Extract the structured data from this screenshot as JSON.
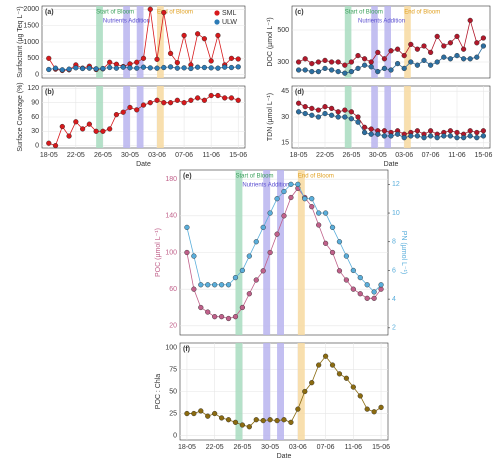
{
  "chart_data": [
    {
      "type": "line",
      "label": "(a)",
      "ylabel": "Surfactant (µg Teq L⁻¹)",
      "legend": "top-right",
      "x": [
        "18-05",
        "19-05",
        "20-05",
        "21-05",
        "22-05",
        "23-05",
        "24-05",
        "25-05",
        "26-05",
        "27-05",
        "28-05",
        "29-05",
        "30-05",
        "31-05",
        "01-06",
        "02-06",
        "03-06",
        "04-06",
        "05-06",
        "06-06",
        "07-06",
        "08-06",
        "09-06",
        "10-06",
        "11-06",
        "12-06",
        "13-06",
        "14-06",
        "15-06"
      ],
      "xlim": [
        "17-05",
        "16-06"
      ],
      "ylim": [
        -100,
        2100
      ],
      "yticks": [
        0,
        500,
        1000,
        1500,
        2000
      ],
      "grid": true,
      "series": [
        {
          "name": "SML",
          "color": "#d7191c",
          "values": [
            500,
            170,
            130,
            150,
            300,
            200,
            260,
            160,
            180,
            380,
            320,
            250,
            330,
            380,
            500,
            2000,
            470,
            1900,
            650,
            370,
            1200,
            300,
            1250,
            1100,
            420,
            1200,
            300,
            500,
            480
          ]
        },
        {
          "name": "ULW",
          "color": "#2c7bb6",
          "values": [
            160,
            200,
            150,
            170,
            210,
            190,
            200,
            180,
            190,
            220,
            200,
            230,
            210,
            200,
            230,
            210,
            200,
            220,
            240,
            200,
            210,
            190,
            230,
            220,
            210,
            200,
            230,
            220,
            240
          ]
        }
      ],
      "bands": [
        {
          "x0": "25-05",
          "x1": "26-05",
          "color": "#a8dcc0"
        },
        {
          "x0": "29-05",
          "x1": "30-05",
          "color": "#b8b4ee"
        },
        {
          "x0": "31-05",
          "x1": "01-06",
          "color": "#b8b4ee"
        },
        {
          "x0": "03-06",
          "x1": "04-06",
          "color": "#f7d9a0"
        }
      ],
      "annotations": [
        {
          "label": "Start of Bloom",
          "x": "25-05",
          "color": "#3aa05a",
          "row": 0
        },
        {
          "label": "Nutrients Addition",
          "x": "26-05",
          "color": "#5b4fd0",
          "row": 1
        },
        {
          "label": "End of Bloom",
          "x": "03-06",
          "color": "#e0a020",
          "row": 0
        }
      ]
    },
    {
      "type": "line",
      "label": "(b)",
      "ylabel": "Surface Coverage (%)",
      "xlabel": "Date",
      "x": [
        "18-05",
        "19-05",
        "20-05",
        "21-05",
        "22-05",
        "23-05",
        "24-05",
        "25-05",
        "26-05",
        "27-05",
        "28-05",
        "29-05",
        "30-05",
        "31-05",
        "01-06",
        "02-06",
        "03-06",
        "04-06",
        "05-06",
        "06-06",
        "07-06",
        "08-06",
        "09-06",
        "10-06",
        "11-06",
        "12-06",
        "13-06",
        "14-06",
        "15-06"
      ],
      "xlim": [
        "17-05",
        "16-06"
      ],
      "xticks": [
        "18-05",
        "22-05",
        "26-05",
        "30-05",
        "03-06",
        "07-06",
        "11-06",
        "15-06"
      ],
      "ylim": [
        -5,
        125
      ],
      "yticks": [
        0,
        30,
        60,
        90,
        120
      ],
      "grid": true,
      "series": [
        {
          "color": "#d7191c",
          "values": [
            5,
            0,
            40,
            20,
            50,
            35,
            45,
            30,
            30,
            35,
            65,
            70,
            80,
            75,
            85,
            90,
            95,
            90,
            90,
            95,
            90,
            95,
            100,
            95,
            105,
            105,
            100,
            100,
            95
          ]
        }
      ],
      "bands": [
        {
          "x0": "25-05",
          "x1": "26-05",
          "color": "#a8dcc0"
        },
        {
          "x0": "29-05",
          "x1": "30-05",
          "color": "#b8b4ee"
        },
        {
          "x0": "31-05",
          "x1": "01-06",
          "color": "#b8b4ee"
        },
        {
          "x0": "03-06",
          "x1": "04-06",
          "color": "#f7d9a0"
        }
      ]
    },
    {
      "type": "line",
      "label": "(c)",
      "ylabel": "DOC (µmol L⁻¹)",
      "x": [
        "18-05",
        "19-05",
        "20-05",
        "21-05",
        "22-05",
        "23-05",
        "24-05",
        "25-05",
        "26-05",
        "27-05",
        "28-05",
        "29-05",
        "30-05",
        "31-05",
        "01-06",
        "02-06",
        "03-06",
        "04-06",
        "05-06",
        "06-06",
        "07-06",
        "08-06",
        "09-06",
        "10-06",
        "11-06",
        "12-06",
        "13-06",
        "14-06",
        "15-06"
      ],
      "xlim": [
        "17-05",
        "16-06"
      ],
      "ylim": [
        200,
        650
      ],
      "yticks": [
        300,
        500
      ],
      "grid": true,
      "series": [
        {
          "color": "#b2182b",
          "values": [
            300,
            320,
            290,
            300,
            310,
            300,
            300,
            280,
            300,
            340,
            320,
            300,
            360,
            320,
            370,
            380,
            340,
            410,
            380,
            400,
            360,
            460,
            400,
            420,
            460,
            380,
            560,
            420,
            450
          ]
        },
        {
          "color": "#2c6ea0",
          "values": [
            250,
            250,
            240,
            240,
            260,
            250,
            240,
            230,
            240,
            260,
            280,
            270,
            240,
            260,
            250,
            290,
            260,
            300,
            280,
            310,
            280,
            300,
            330,
            320,
            340,
            320,
            320,
            330,
            400
          ]
        }
      ],
      "bands": [
        {
          "x0": "25-05",
          "x1": "26-05",
          "color": "#a8dcc0"
        },
        {
          "x0": "29-05",
          "x1": "30-05",
          "color": "#b8b4ee"
        },
        {
          "x0": "31-05",
          "x1": "01-06",
          "color": "#b8b4ee"
        },
        {
          "x0": "03-06",
          "x1": "04-06",
          "color": "#f7d9a0"
        }
      ],
      "annotations": [
        {
          "label": "Start of Bloom",
          "x": "25-05",
          "color": "#3aa05a",
          "row": 0
        },
        {
          "label": "Nutrients Addition",
          "x": "27-05",
          "color": "#5b4fd0",
          "row": 1
        },
        {
          "label": "End of Bloom",
          "x": "03-06",
          "color": "#e0a020",
          "row": 0
        }
      ]
    },
    {
      "type": "line",
      "label": "(d)",
      "ylabel": "TDN (µmol L⁻¹)",
      "xlabel": "Date",
      "x": [
        "18-05",
        "19-05",
        "20-05",
        "21-05",
        "22-05",
        "23-05",
        "24-05",
        "25-05",
        "26-05",
        "27-05",
        "28-05",
        "29-05",
        "30-05",
        "31-05",
        "01-06",
        "02-06",
        "03-06",
        "04-06",
        "05-06",
        "06-06",
        "07-06",
        "08-06",
        "09-06",
        "10-06",
        "11-06",
        "12-06",
        "13-06",
        "14-06",
        "15-06"
      ],
      "xlim": [
        "17-05",
        "16-06"
      ],
      "xticks": [
        "18-05",
        "22-05",
        "26-05",
        "30-05",
        "03-06",
        "07-06",
        "11-06",
        "15-06"
      ],
      "ylim": [
        12,
        48
      ],
      "yticks": [
        15,
        30,
        45
      ],
      "grid": true,
      "series": [
        {
          "color": "#b2182b",
          "values": [
            38,
            36,
            35,
            34,
            36,
            35,
            33,
            34,
            33,
            30,
            24,
            23,
            22,
            22,
            21,
            22,
            20,
            21,
            22,
            20,
            22,
            20,
            21,
            22,
            21,
            20,
            22,
            21,
            22
          ]
        },
        {
          "color": "#2c6ea0",
          "values": [
            33,
            32,
            31,
            30,
            32,
            31,
            30,
            30,
            29,
            27,
            21,
            20,
            20,
            19,
            19,
            20,
            18,
            19,
            19,
            18,
            19,
            18,
            19,
            19,
            18,
            18,
            19,
            18,
            19
          ]
        }
      ],
      "bands": [
        {
          "x0": "25-05",
          "x1": "26-05",
          "color": "#a8dcc0"
        },
        {
          "x0": "29-05",
          "x1": "30-05",
          "color": "#b8b4ee"
        },
        {
          "x0": "31-05",
          "x1": "01-06",
          "color": "#b8b4ee"
        },
        {
          "x0": "03-06",
          "x1": "04-06",
          "color": "#f7d9a0"
        }
      ]
    },
    {
      "type": "line",
      "label": "(e)",
      "ylabel": "POC (µmol L⁻¹)",
      "y2label": "PN (µmol L⁻¹)",
      "x": [
        "18-05",
        "19-05",
        "20-05",
        "21-05",
        "22-05",
        "23-05",
        "24-05",
        "25-05",
        "26-05",
        "27-05",
        "28-05",
        "29-05",
        "30-05",
        "31-05",
        "01-06",
        "02-06",
        "03-06",
        "04-06",
        "05-06",
        "06-06",
        "07-06",
        "08-06",
        "09-06",
        "10-06",
        "11-06",
        "12-06",
        "13-06",
        "14-06",
        "15-06"
      ],
      "xlim": [
        "17-05",
        "16-06"
      ],
      "ylim": [
        10,
        190
      ],
      "yticks": [
        20,
        60,
        100,
        140,
        180
      ],
      "y2lim": [
        1.5,
        13
      ],
      "y2ticks": [
        2,
        4,
        6,
        8,
        10,
        12
      ],
      "grid": true,
      "series": [
        {
          "color": "#c0608a",
          "values": [
            100,
            60,
            40,
            35,
            30,
            30,
            28,
            30,
            40,
            55,
            70,
            80,
            100,
            120,
            140,
            160,
            170,
            160,
            150,
            130,
            110,
            100,
            80,
            70,
            60,
            55,
            50,
            50,
            60
          ]
        },
        {
          "color": "#5aaedb",
          "axis": "y2",
          "values": [
            9,
            7,
            5,
            5,
            5,
            5,
            5,
            5.5,
            6,
            7,
            8,
            9,
            10,
            11,
            11.5,
            12,
            12,
            11,
            11,
            10,
            10,
            9,
            8,
            7,
            6,
            5.5,
            5,
            4.5,
            5
          ]
        }
      ],
      "bands": [
        {
          "x0": "25-05",
          "x1": "26-05",
          "color": "#a8dcc0"
        },
        {
          "x0": "29-05",
          "x1": "30-05",
          "color": "#b8b4ee"
        },
        {
          "x0": "31-05",
          "x1": "01-06",
          "color": "#b8b4ee"
        },
        {
          "x0": "03-06",
          "x1": "04-06",
          "color": "#f7d9a0"
        }
      ],
      "annotations": [
        {
          "label": "Start of Bloom",
          "x": "25-05",
          "color": "#3aa05a",
          "row": 0
        },
        {
          "label": "Nutrients Addition",
          "x": "26-05",
          "color": "#5b4fd0",
          "row": 1
        },
        {
          "label": "End of Bloom",
          "x": "03-06",
          "color": "#e0a020",
          "row": 0
        }
      ]
    },
    {
      "type": "line",
      "label": "(f)",
      "ylabel": "POC : Chla",
      "xlabel": "Date",
      "x": [
        "18-05",
        "19-05",
        "20-05",
        "21-05",
        "22-05",
        "23-05",
        "24-05",
        "25-05",
        "26-05",
        "27-05",
        "28-05",
        "29-05",
        "30-05",
        "31-05",
        "01-06",
        "02-06",
        "03-06",
        "04-06",
        "05-06",
        "06-06",
        "07-06",
        "08-06",
        "09-06",
        "10-06",
        "11-06",
        "12-06",
        "13-06",
        "14-06",
        "15-06"
      ],
      "xlim": [
        "17-05",
        "16-06"
      ],
      "xticks": [
        "18-05",
        "22-05",
        "26-05",
        "30-05",
        "03-06",
        "07-06",
        "11-06",
        "15-06"
      ],
      "ylim": [
        -5,
        105
      ],
      "yticks": [
        0,
        25,
        50,
        75,
        100
      ],
      "grid": true,
      "series": [
        {
          "color": "#8b6b10",
          "values": [
            25,
            25,
            28,
            22,
            25,
            20,
            18,
            15,
            12,
            10,
            18,
            17,
            18,
            17,
            18,
            15,
            30,
            50,
            60,
            80,
            90,
            80,
            70,
            65,
            55,
            45,
            30,
            27,
            32
          ]
        }
      ],
      "bands": [
        {
          "x0": "25-05",
          "x1": "26-05",
          "color": "#a8dcc0"
        },
        {
          "x0": "29-05",
          "x1": "30-05",
          "color": "#b8b4ee"
        },
        {
          "x0": "31-05",
          "x1": "01-06",
          "color": "#b8b4ee"
        },
        {
          "x0": "03-06",
          "x1": "04-06",
          "color": "#f7d9a0"
        }
      ]
    }
  ]
}
